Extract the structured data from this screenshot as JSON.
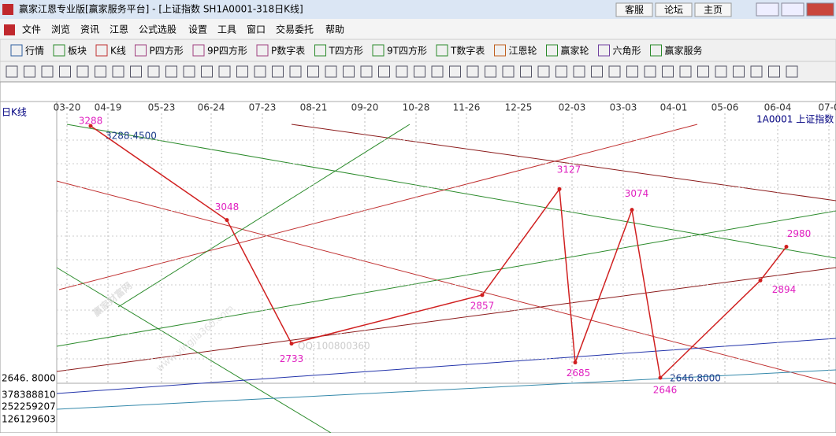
{
  "window": {
    "title": "赢家江恩专业版[赢家服务平台] - [上证指数  SH1A0001-318日K线]",
    "buttons": [
      "客服",
      "论坛",
      "主页"
    ]
  },
  "menu": [
    "文件",
    "浏览",
    "资讯",
    "江恩",
    "公式选股",
    "设置",
    "工具",
    "窗口",
    "交易委托",
    "帮助"
  ],
  "toolbar": [
    "行情",
    "板块",
    "K线",
    "P四方形",
    "9P四方形",
    "P数字表",
    "T四方形",
    "9T四方形",
    "T数字表",
    "江恩轮",
    "赢家轮",
    "六角形",
    "赢家服务"
  ],
  "chart": {
    "period": "日K线",
    "symbol": "1A0001  上证指数",
    "dates": [
      "03-20",
      "04-19",
      "05-23",
      "06-24",
      "07-23",
      "08-21",
      "09-20",
      "10-28",
      "11-26",
      "12-25",
      "02-03",
      "03-03",
      "04-01",
      "05-06",
      "06-04",
      "07-0"
    ],
    "axis_labels": [
      "2646. 8000",
      "378388810",
      "252259207",
      "126129603"
    ],
    "pivots": [
      3288,
      3048,
      2733,
      2857,
      3127,
      2685,
      3074,
      2646,
      2894,
      2980
    ],
    "high_label": "3288.4500",
    "low_label": "2646.8000",
    "watermark": "赢家财富网",
    "watermark_url": "www.yingjia360.com",
    "watermark_qq": "QQ:100800360"
  }
}
